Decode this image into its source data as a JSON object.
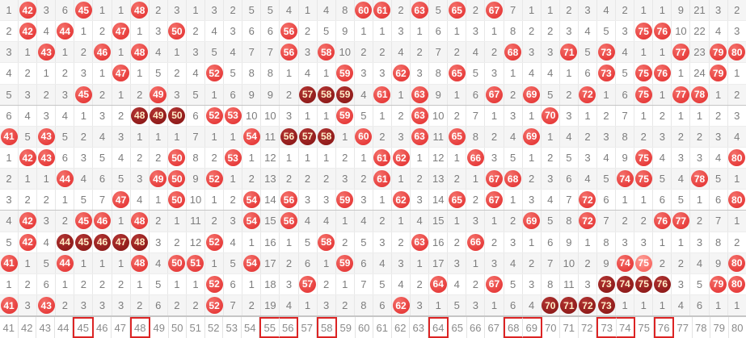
{
  "colors": {
    "ball_red": "#e73d3c",
    "ball_dark_red": "#8f1b1a",
    "ball_light_red": "#f8625c",
    "ball_text": "#ffffff",
    "ball_dark_text": "#ffeec9",
    "miss_text_gray": "#7d7d7d",
    "footer_text_gray": "#8a8a8a",
    "row_alt_bg": "#f5f5f5",
    "group_separator": "#c6c6c6",
    "cell_border": "#e7e7e7",
    "footer_box_red": "#dc2424"
  },
  "chart_data": {
    "type": "table",
    "legend_note": "cells: gray number = miss count; ball = drawn number (d=dark maroon run of 3+, l=light shade)",
    "rows": [
      [
        1,
        {
          "n": 42
        },
        3,
        6,
        {
          "n": 45
        },
        1,
        1,
        {
          "n": 48
        },
        2,
        3,
        1,
        3,
        2,
        5,
        5,
        4,
        1,
        4,
        8,
        {
          "n": 60
        },
        {
          "n": 61
        },
        2,
        {
          "n": 63
        },
        5,
        {
          "n": 65
        },
        2,
        {
          "n": 67
        },
        7,
        1,
        1,
        2,
        3,
        4,
        2,
        1,
        1,
        9,
        21,
        3,
        2
      ],
      [
        2,
        {
          "n": 42
        },
        4,
        {
          "n": 44
        },
        1,
        2,
        {
          "n": 47
        },
        1,
        3,
        {
          "n": 50
        },
        2,
        4,
        3,
        6,
        6,
        {
          "n": 56
        },
        2,
        5,
        9,
        1,
        1,
        3,
        1,
        6,
        1,
        3,
        1,
        8,
        2,
        2,
        3,
        4,
        5,
        3,
        {
          "n": 75
        },
        {
          "n": 76
        },
        10,
        22,
        4,
        3
      ],
      [
        3,
        1,
        {
          "n": 43
        },
        1,
        2,
        {
          "n": 46
        },
        1,
        {
          "n": 48
        },
        4,
        1,
        3,
        5,
        4,
        7,
        7,
        {
          "n": 56
        },
        3,
        {
          "n": 58
        },
        10,
        2,
        2,
        4,
        2,
        7,
        2,
        4,
        2,
        {
          "n": 68
        },
        3,
        3,
        {
          "n": 71
        },
        5,
        {
          "n": 73
        },
        4,
        1,
        1,
        {
          "n": 77
        },
        23,
        {
          "n": 79
        },
        {
          "n": 80
        }
      ],
      [
        4,
        2,
        1,
        2,
        3,
        1,
        {
          "n": 47
        },
        1,
        5,
        2,
        4,
        {
          "n": 52
        },
        5,
        8,
        8,
        1,
        4,
        1,
        {
          "n": 59
        },
        3,
        3,
        {
          "n": 62
        },
        3,
        8,
        {
          "n": 65
        },
        5,
        3,
        1,
        4,
        4,
        1,
        6,
        {
          "n": 73
        },
        5,
        {
          "n": 75
        },
        {
          "n": 76
        },
        1,
        24,
        {
          "n": 79
        },
        1
      ],
      [
        5,
        3,
        2,
        3,
        {
          "n": 45
        },
        2,
        1,
        2,
        {
          "n": 49
        },
        3,
        5,
        1,
        6,
        9,
        9,
        2,
        {
          "n": 57,
          "d": 1
        },
        {
          "n": 58,
          "d": 1
        },
        {
          "n": 59,
          "d": 1
        },
        4,
        {
          "n": 61
        },
        1,
        {
          "n": 63
        },
        9,
        1,
        6,
        {
          "n": 67
        },
        2,
        {
          "n": 69
        },
        5,
        2,
        {
          "n": 72
        },
        1,
        6,
        {
          "n": 75
        },
        1,
        {
          "n": 77
        },
        {
          "n": 78
        },
        1,
        2
      ],
      [
        6,
        4,
        3,
        4,
        1,
        3,
        2,
        {
          "n": 48,
          "d": 1
        },
        {
          "n": 49,
          "d": 1
        },
        {
          "n": 50,
          "d": 1
        },
        6,
        {
          "n": 52
        },
        {
          "n": 53
        },
        10,
        10,
        3,
        1,
        1,
        {
          "n": 59
        },
        5,
        1,
        2,
        {
          "n": 63
        },
        10,
        2,
        7,
        1,
        3,
        1,
        {
          "n": 70
        },
        3,
        1,
        2,
        7,
        1,
        2,
        1,
        1,
        2,
        3
      ],
      [
        {
          "n": 41
        },
        5,
        {
          "n": 43
        },
        5,
        2,
        4,
        3,
        1,
        1,
        1,
        7,
        1,
        1,
        {
          "n": 54
        },
        11,
        {
          "n": 56,
          "d": 1
        },
        {
          "n": 57,
          "d": 1
        },
        {
          "n": 58,
          "d": 1
        },
        1,
        {
          "n": 60
        },
        2,
        3,
        {
          "n": 63
        },
        11,
        {
          "n": 65
        },
        8,
        2,
        4,
        {
          "n": 69
        },
        1,
        4,
        2,
        3,
        8,
        2,
        3,
        2,
        2,
        3,
        4
      ],
      [
        1,
        {
          "n": 42
        },
        {
          "n": 43
        },
        6,
        3,
        5,
        4,
        2,
        2,
        {
          "n": 50
        },
        8,
        2,
        {
          "n": 53
        },
        1,
        12,
        1,
        1,
        1,
        2,
        1,
        {
          "n": 61
        },
        {
          "n": 62
        },
        1,
        12,
        1,
        {
          "n": 66
        },
        3,
        5,
        1,
        2,
        5,
        3,
        4,
        9,
        {
          "n": 75
        },
        4,
        3,
        3,
        4,
        {
          "n": 80
        }
      ],
      [
        2,
        1,
        1,
        {
          "n": 44
        },
        4,
        6,
        5,
        3,
        {
          "n": 49
        },
        {
          "n": 50
        },
        9,
        {
          "n": 52
        },
        1,
        2,
        13,
        2,
        2,
        2,
        3,
        2,
        {
          "n": 61
        },
        1,
        2,
        13,
        2,
        1,
        {
          "n": 67
        },
        {
          "n": 68
        },
        2,
        3,
        6,
        4,
        5,
        {
          "n": 74
        },
        {
          "n": 75
        },
        5,
        4,
        {
          "n": 78
        },
        5,
        1
      ],
      [
        3,
        2,
        2,
        1,
        5,
        7,
        {
          "n": 47
        },
        4,
        1,
        {
          "n": 50
        },
        10,
        1,
        2,
        {
          "n": 54
        },
        14,
        {
          "n": 56
        },
        3,
        3,
        {
          "n": 59
        },
        3,
        1,
        {
          "n": 62
        },
        3,
        14,
        {
          "n": 65
        },
        2,
        {
          "n": 67
        },
        1,
        3,
        4,
        7,
        {
          "n": 72
        },
        6,
        1,
        1,
        6,
        5,
        1,
        6,
        {
          "n": 80
        }
      ],
      [
        4,
        {
          "n": 42
        },
        3,
        2,
        {
          "n": 45
        },
        {
          "n": 46
        },
        1,
        {
          "n": 48
        },
        2,
        1,
        11,
        2,
        3,
        {
          "n": 54
        },
        15,
        {
          "n": 56
        },
        4,
        4,
        1,
        4,
        2,
        1,
        4,
        15,
        1,
        3,
        1,
        2,
        {
          "n": 69
        },
        5,
        8,
        {
          "n": 72
        },
        7,
        2,
        2,
        {
          "n": 76
        },
        {
          "n": 77
        },
        2,
        7,
        1
      ],
      [
        5,
        {
          "n": 42
        },
        4,
        {
          "n": 44,
          "d": 1
        },
        {
          "n": 45,
          "d": 1
        },
        {
          "n": 46,
          "d": 1
        },
        {
          "n": 47,
          "d": 1
        },
        {
          "n": 48,
          "d": 1
        },
        3,
        2,
        12,
        {
          "n": 52
        },
        4,
        1,
        16,
        1,
        5,
        {
          "n": 58
        },
        2,
        5,
        3,
        2,
        {
          "n": 63
        },
        16,
        2,
        {
          "n": 66
        },
        2,
        3,
        1,
        6,
        9,
        1,
        8,
        3,
        3,
        1,
        1,
        3,
        8,
        2
      ],
      [
        {
          "n": 41
        },
        1,
        5,
        {
          "n": 44
        },
        1,
        1,
        1,
        {
          "n": 48
        },
        4,
        {
          "n": 50
        },
        {
          "n": 51
        },
        1,
        5,
        {
          "n": 54
        },
        17,
        2,
        6,
        1,
        {
          "n": 59
        },
        6,
        4,
        3,
        1,
        17,
        3,
        1,
        3,
        4,
        2,
        7,
        10,
        2,
        9,
        {
          "n": 74
        },
        {
          "n": 75,
          "l": 1
        },
        2,
        2,
        4,
        9,
        {
          "n": 80
        }
      ],
      [
        1,
        2,
        6,
        1,
        2,
        2,
        2,
        1,
        5,
        1,
        1,
        {
          "n": 52
        },
        6,
        1,
        18,
        3,
        {
          "n": 57
        },
        2,
        1,
        7,
        5,
        4,
        2,
        {
          "n": 64
        },
        4,
        2,
        {
          "n": 67
        },
        5,
        3,
        8,
        11,
        3,
        {
          "n": 73,
          "d": 1
        },
        {
          "n": 74,
          "d": 1
        },
        {
          "n": 75,
          "d": 1
        },
        {
          "n": 76,
          "d": 1
        },
        3,
        5,
        {
          "n": 79
        },
        {
          "n": 80
        }
      ],
      [
        {
          "n": 41
        },
        3,
        {
          "n": 43
        },
        2,
        3,
        3,
        3,
        2,
        6,
        2,
        2,
        {
          "n": 52
        },
        7,
        2,
        19,
        4,
        1,
        3,
        2,
        8,
        6,
        {
          "n": 62
        },
        3,
        1,
        5,
        3,
        1,
        6,
        4,
        {
          "n": 70,
          "d": 1
        },
        {
          "n": 71,
          "d": 1
        },
        {
          "n": 72,
          "d": 1
        },
        {
          "n": 73,
          "d": 1
        },
        1,
        1,
        1,
        4,
        6,
        1,
        1
      ]
    ]
  },
  "footer": {
    "labels": [
      41,
      42,
      43,
      44,
      45,
      46,
      47,
      48,
      49,
      50,
      51,
      52,
      53,
      54,
      55,
      56,
      57,
      58,
      59,
      60,
      61,
      62,
      63,
      64,
      65,
      66,
      67,
      68,
      69,
      70,
      71,
      72,
      73,
      74,
      75,
      76,
      77,
      78,
      79,
      80
    ],
    "boxed_groups": [
      [
        45,
        45
      ],
      [
        48,
        48
      ],
      [
        55,
        56
      ],
      [
        58,
        58
      ],
      [
        64,
        64
      ],
      [
        68,
        69
      ],
      [
        73,
        74
      ],
      [
        76,
        76
      ]
    ]
  }
}
